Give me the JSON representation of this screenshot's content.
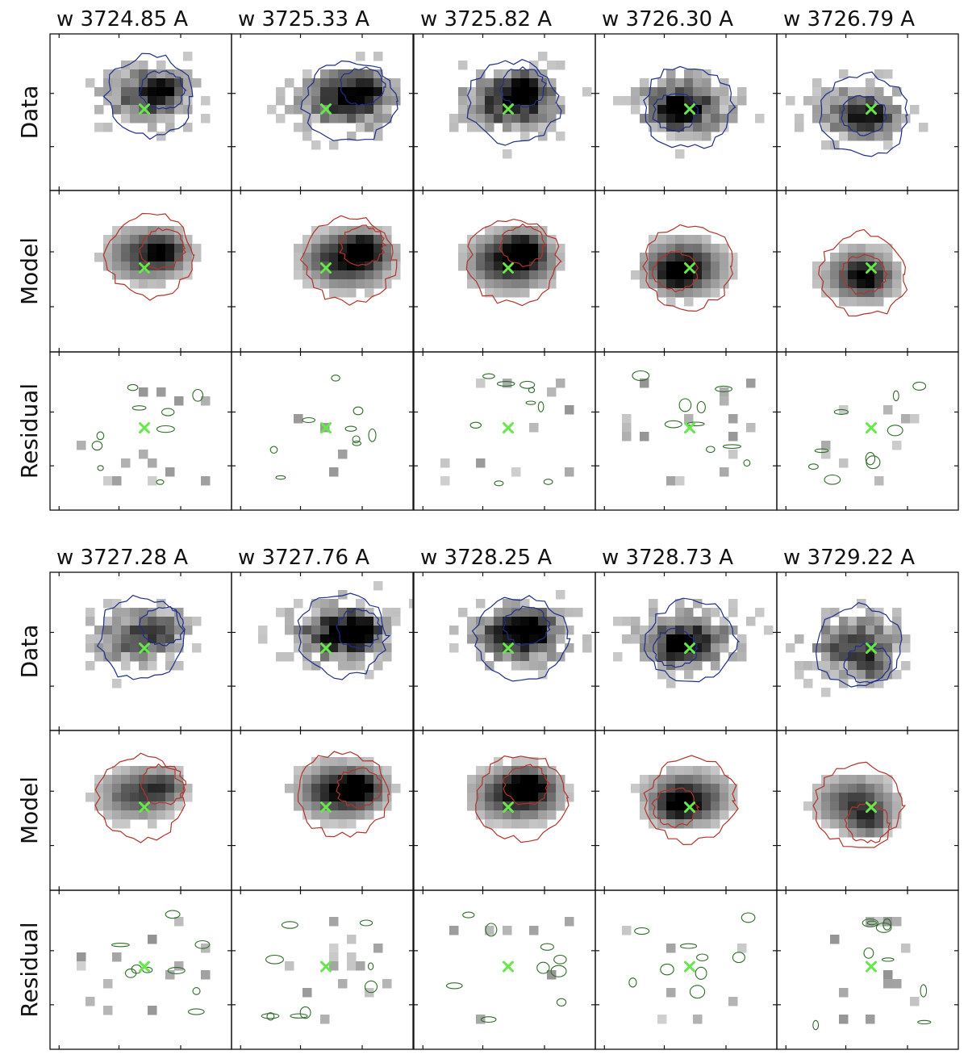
{
  "chart_data": {
    "type": "heatmap",
    "description_free": true,
    "row_labels": [
      "Data",
      "Model",
      "Residual"
    ],
    "groups": [
      {
        "titles": [
          "w 3724.85 A",
          "w 3725.33 A",
          "w 3725.82 A",
          "w 3726.30 A",
          "w 3726.79 A"
        ],
        "channels": [
          {
            "sx": 0.52,
            "sy": 0.38,
            "ex": 0.75,
            "ey": 0.33,
            "fx": 0.62,
            "fy": 0.36,
            "blob_amp": 0.75,
            "center_x": 0.52,
            "center_y": 0.48
          },
          {
            "sx": 0.62,
            "sy": 0.41,
            "ex": 1.0,
            "ey": 0.38,
            "fx": 0.72,
            "fy": 0.34,
            "blob_amp": 0.95,
            "center_x": 0.52,
            "center_y": 0.48
          },
          {
            "sx": 0.52,
            "sy": 0.42,
            "ex": 1.0,
            "ey": 0.42,
            "fx": 0.6,
            "fy": 0.34,
            "blob_amp": 0.95,
            "center_x": 0.52,
            "center_y": 0.48
          },
          {
            "sx": 0.48,
            "sy": 0.45,
            "ex": 0.9,
            "ey": 0.5,
            "fx": 0.44,
            "fy": 0.5,
            "blob_amp": 0.85,
            "center_x": 0.52,
            "center_y": 0.48
          },
          {
            "sx": 0.45,
            "sy": 0.5,
            "ex": 0.7,
            "ey": 0.4,
            "fx": 0.48,
            "fy": 0.52,
            "blob_amp": 0.7,
            "center_x": 0.52,
            "center_y": 0.48
          }
        ]
      },
      {
        "titles": [
          "w 3727.28 A",
          "w 3727.76 A",
          "w 3728.25 A",
          "w 3728.73 A",
          "w 3729.22 A"
        ],
        "channels": [
          {
            "sx": 0.47,
            "sy": 0.4,
            "ex": 0.7,
            "ey": 0.35,
            "fx": 0.62,
            "fy": 0.34,
            "blob_amp": 0.7,
            "center_x": 0.52,
            "center_y": 0.48
          },
          {
            "sx": 0.58,
            "sy": 0.38,
            "ex": 0.9,
            "ey": 0.38,
            "fx": 0.7,
            "fy": 0.36,
            "blob_amp": 0.95,
            "center_x": 0.52,
            "center_y": 0.48
          },
          {
            "sx": 0.56,
            "sy": 0.4,
            "ex": 1.0,
            "ey": 0.45,
            "fx": 0.62,
            "fy": 0.34,
            "blob_amp": 0.95,
            "center_x": 0.52,
            "center_y": 0.48
          },
          {
            "sx": 0.5,
            "sy": 0.42,
            "ex": 0.9,
            "ey": 0.5,
            "fx": 0.44,
            "fy": 0.48,
            "blob_amp": 0.85,
            "center_x": 0.52,
            "center_y": 0.48
          },
          {
            "sx": 0.42,
            "sy": 0.45,
            "ex": 0.7,
            "ey": 0.45,
            "fx": 0.5,
            "fy": 0.58,
            "blob_amp": 0.75,
            "center_x": 0.52,
            "center_y": 0.48
          }
        ]
      }
    ],
    "colors": {
      "data_contour": "#1f2d8a",
      "model_contour": "#b2332b",
      "residual_contour": "#2f6b2a",
      "center_marker": "#66e84a"
    }
  }
}
